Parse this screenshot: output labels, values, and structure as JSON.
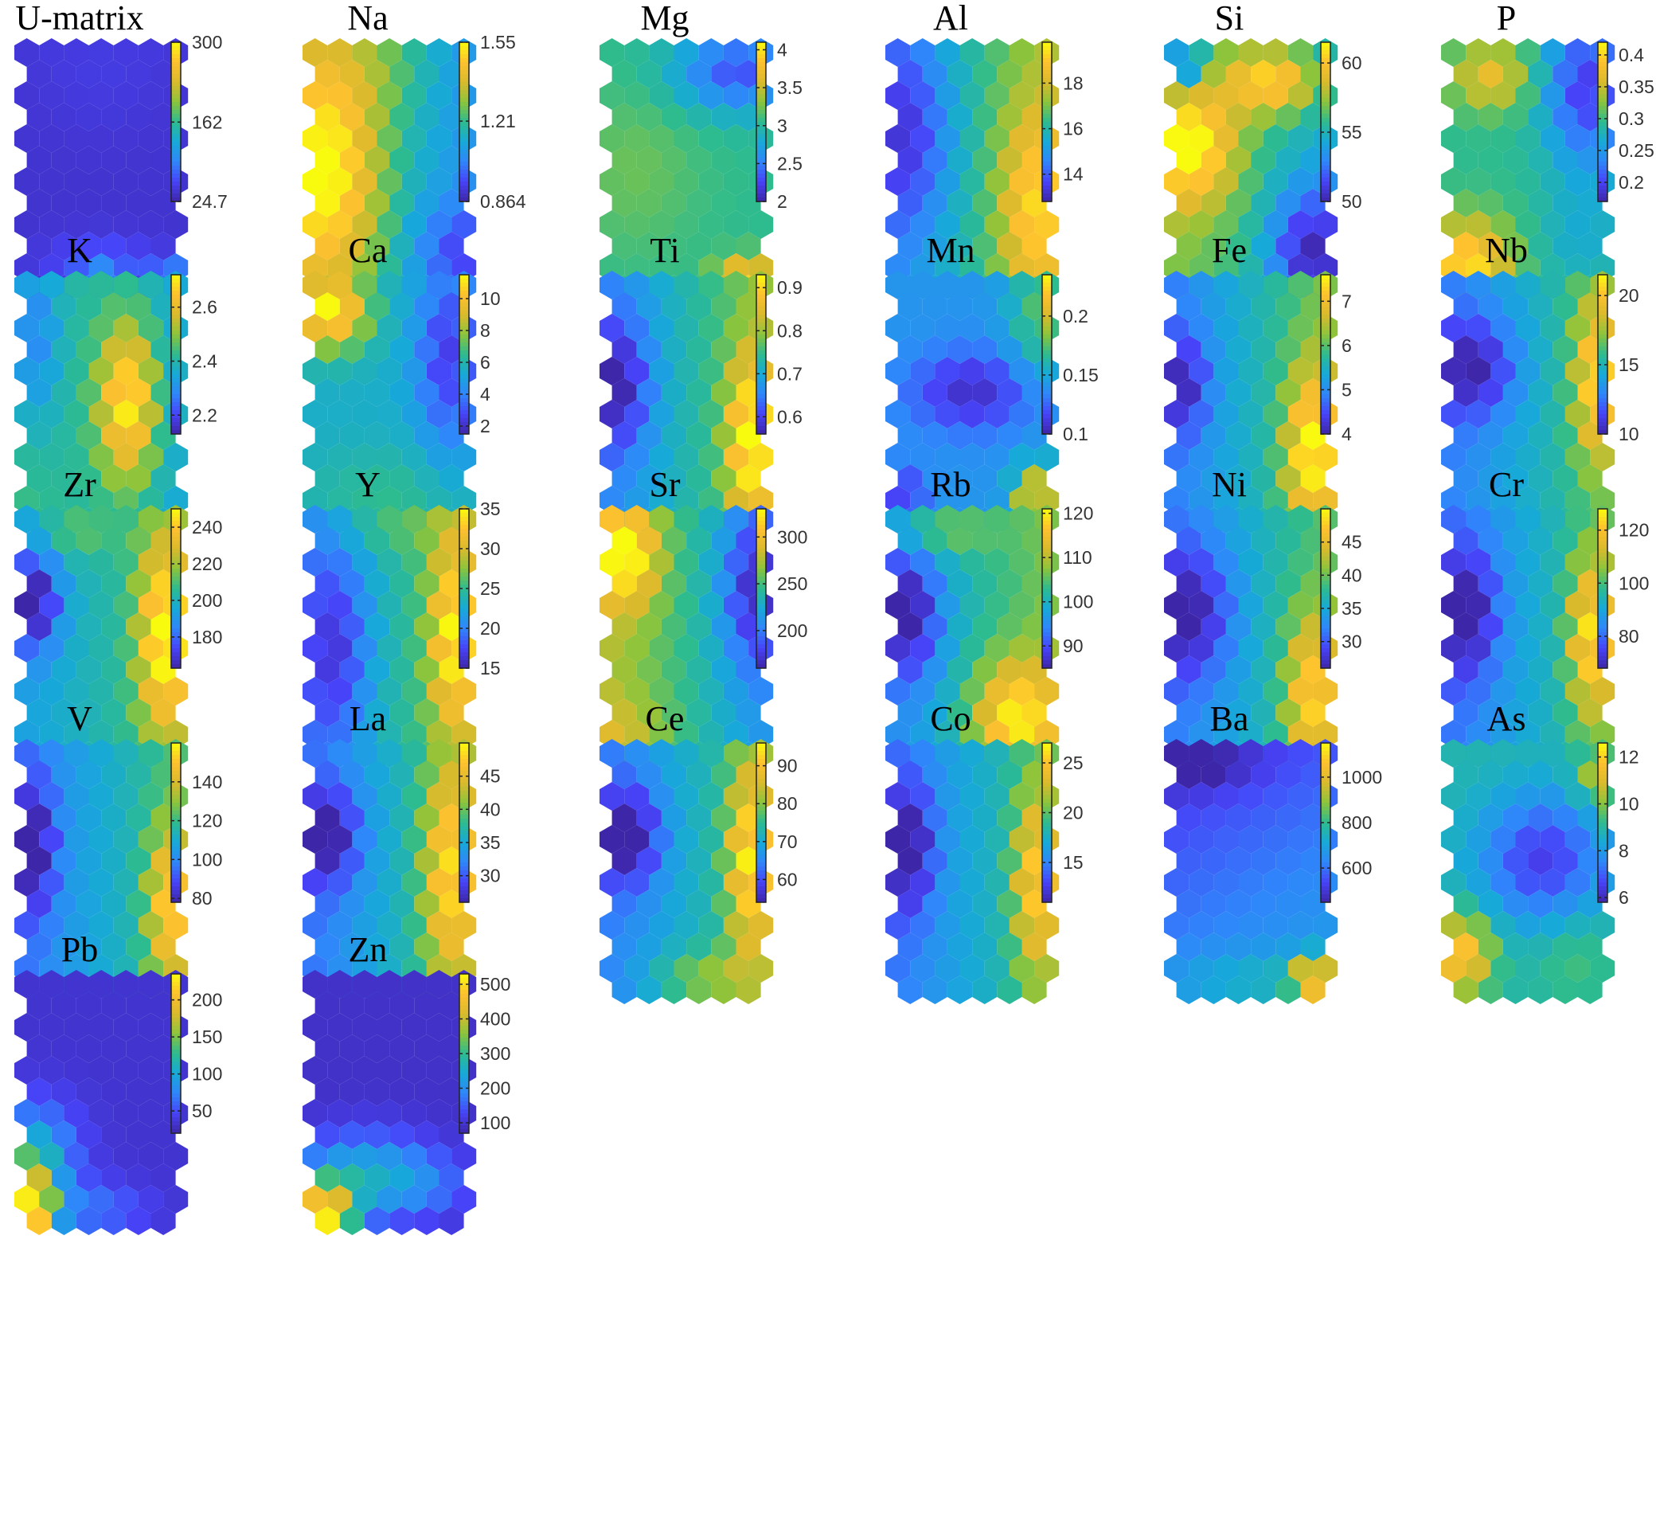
{
  "colormap": [
    "#3e26a8",
    "#4743f8",
    "#2f87fa",
    "#17a9d8",
    "#2dbb8f",
    "#8dc43b",
    "#dbba2d",
    "#fdc12f",
    "#f9fb0e"
  ],
  "chart_data": [
    {
      "type": "heatmap",
      "title": "U-matrix",
      "clim": [
        24.7,
        300
      ],
      "ticks": [
        24.7,
        162,
        300
      ],
      "tick_labels": [
        "24.7",
        "162",
        "300"
      ],
      "field": {
        "base": 0.06,
        "terms": [
          [
            0.22,
            0.5,
            0.98,
            0.09,
            0.05
          ],
          [
            0.25,
            0.95,
            0.95,
            0.08,
            0.05
          ],
          [
            0.12,
            0.5,
            0.9,
            0.25,
            0.08
          ],
          [
            0.03,
            0.5,
            0.05,
            0.4,
            0.2
          ]
        ]
      }
    },
    {
      "type": "heatmap",
      "title": "Na",
      "clim": [
        0.864,
        1.55
      ],
      "ticks": [
        0.864,
        1.21,
        1.55
      ],
      "tick_labels": [
        "0.864",
        "1.21",
        "1.55"
      ],
      "field": {
        "base": 0.45,
        "grad": [
          -0.28,
          0
        ],
        "terms": [
          [
            0.45,
            0.1,
            0.5,
            0.25,
            0.35
          ],
          [
            0.1,
            0.45,
            0.05,
            0.25,
            0.15
          ],
          [
            -0.2,
            0.95,
            0.85,
            0.22,
            0.15
          ]
        ]
      }
    },
    {
      "type": "heatmap",
      "title": "Mg",
      "clim": [
        2,
        4.1
      ],
      "ticks": [
        2,
        2.5,
        3,
        3.5,
        4
      ],
      "tick_labels": [
        "2",
        "2.5",
        "3",
        "3.5",
        "4"
      ],
      "field": {
        "base": 0.5,
        "terms": [
          [
            -0.35,
            0.85,
            0.08,
            0.3,
            0.12
          ],
          [
            0.45,
            0.9,
            0.97,
            0.14,
            0.07
          ],
          [
            0.08,
            0.15,
            0.5,
            0.3,
            0.25
          ]
        ]
      }
    },
    {
      "type": "heatmap",
      "title": "Al",
      "clim": [
        12.8,
        19.8
      ],
      "ticks": [
        14,
        16,
        18
      ],
      "tick_labels": [
        "14",
        "16",
        "18"
      ],
      "field": {
        "base": 0.48,
        "grad": [
          0.35,
          0
        ],
        "terms": [
          [
            0.3,
            0.9,
            0.65,
            0.16,
            0.3
          ],
          [
            -0.25,
            0.08,
            0.35,
            0.2,
            0.3
          ]
        ]
      }
    },
    {
      "type": "heatmap",
      "title": "Si",
      "clim": [
        50,
        61.5
      ],
      "ticks": [
        50,
        55,
        60
      ],
      "tick_labels": [
        "50",
        "55",
        "60"
      ],
      "field": {
        "base": 0.5,
        "grad": [
          -0.2,
          0
        ],
        "terms": [
          [
            0.45,
            0.1,
            0.4,
            0.22,
            0.18
          ],
          [
            0.45,
            0.65,
            0.12,
            0.22,
            0.1
          ],
          [
            -0.4,
            0.9,
            0.85,
            0.2,
            0.2
          ],
          [
            -0.4,
            0.05,
            0.05,
            0.1,
            0.08
          ]
        ]
      }
    },
    {
      "type": "heatmap",
      "title": "P",
      "clim": [
        0.17,
        0.42
      ],
      "ticks": [
        0.2,
        0.25,
        0.3,
        0.35,
        0.4
      ],
      "tick_labels": [
        "0.2",
        "0.25",
        "0.3",
        "0.35",
        "0.4"
      ],
      "field": {
        "base": 0.5,
        "terms": [
          [
            0.45,
            0.1,
            0.9,
            0.2,
            0.14
          ],
          [
            0.3,
            0.25,
            0.1,
            0.18,
            0.1
          ],
          [
            -0.4,
            0.9,
            0.15,
            0.2,
            0.25
          ],
          [
            -0.1,
            0.85,
            0.8,
            0.2,
            0.15
          ]
        ]
      }
    },
    {
      "type": "heatmap",
      "title": "K",
      "clim": [
        2.13,
        2.72
      ],
      "ticks": [
        2.2,
        2.4,
        2.6
      ],
      "tick_labels": [
        "2.2",
        "2.4",
        "2.6"
      ],
      "field": {
        "base": 0.45,
        "grad": [
          -0.15,
          0
        ],
        "terms": [
          [
            0.55,
            0.68,
            0.5,
            0.14,
            0.25
          ],
          [
            -0.25,
            0.05,
            0.2,
            0.12,
            0.3
          ]
        ]
      }
    },
    {
      "type": "heatmap",
      "title": "Ca",
      "clim": [
        1.5,
        11.5
      ],
      "ticks": [
        2,
        4,
        6,
        8,
        10
      ],
      "tick_labels": [
        "2",
        "4",
        "6",
        "8",
        "10"
      ],
      "field": {
        "base": 0.4,
        "terms": [
          [
            0.6,
            0.1,
            0.1,
            0.18,
            0.12
          ],
          [
            -0.3,
            0.9,
            0.3,
            0.15,
            0.3
          ],
          [
            0.1,
            0.5,
            0.9,
            0.4,
            0.15
          ]
        ]
      }
    },
    {
      "type": "heatmap",
      "title": "Ti",
      "clim": [
        0.56,
        0.93
      ],
      "ticks": [
        0.6,
        0.7,
        0.8,
        0.9
      ],
      "tick_labels": [
        "0.6",
        "0.7",
        "0.8",
        "0.9"
      ],
      "field": {
        "base": 0.45,
        "grad": [
          0.35,
          0
        ],
        "terms": [
          [
            0.45,
            0.92,
            0.65,
            0.1,
            0.25
          ],
          [
            -0.3,
            0.05,
            0.42,
            0.15,
            0.2
          ]
        ]
      }
    },
    {
      "type": "heatmap",
      "title": "Mn",
      "clim": [
        0.1,
        0.235
      ],
      "ticks": [
        0.1,
        0.15,
        0.2
      ],
      "tick_labels": [
        "0.1",
        "0.15",
        "0.2"
      ],
      "field": {
        "base": 0.3,
        "terms": [
          [
            -0.25,
            0.5,
            0.45,
            0.3,
            0.12
          ],
          [
            0.25,
            0.95,
            0.12,
            0.15,
            0.2
          ],
          [
            0.55,
            0.92,
            0.9,
            0.1,
            0.1
          ],
          [
            -0.2,
            0.05,
            0.9,
            0.1,
            0.1
          ]
        ]
      }
    },
    {
      "type": "heatmap",
      "title": "Fe",
      "clim": [
        4,
        7.6
      ],
      "ticks": [
        4,
        5,
        6,
        7
      ],
      "tick_labels": [
        "4",
        "5",
        "6",
        "7"
      ],
      "field": {
        "base": 0.42,
        "grad": [
          0.35,
          0
        ],
        "terms": [
          [
            0.45,
            0.9,
            0.7,
            0.12,
            0.25
          ],
          [
            -0.25,
            0.05,
            0.42,
            0.12,
            0.15
          ]
        ]
      }
    },
    {
      "type": "heatmap",
      "title": "Nb",
      "clim": [
        10,
        21.5
      ],
      "ticks": [
        10,
        15,
        20
      ],
      "tick_labels": [
        "10",
        "15",
        "20"
      ],
      "field": {
        "base": 0.4,
        "grad": [
          0.3,
          0
        ],
        "terms": [
          [
            0.4,
            0.95,
            0.4,
            0.1,
            0.25
          ],
          [
            -0.3,
            0.15,
            0.35,
            0.2,
            0.15
          ]
        ]
      }
    },
    {
      "type": "heatmap",
      "title": "Zr",
      "clim": [
        163,
        250
      ],
      "ticks": [
        180,
        200,
        220,
        240
      ],
      "tick_labels": [
        "180",
        "200",
        "220",
        "240"
      ],
      "field": {
        "base": 0.45,
        "grad": [
          0.2,
          0
        ],
        "terms": [
          [
            0.5,
            0.92,
            0.5,
            0.12,
            0.3
          ],
          [
            -0.4,
            0.05,
            0.35,
            0.12,
            0.15
          ],
          [
            0.15,
            0.3,
            0.05,
            0.2,
            0.08
          ]
        ]
      }
    },
    {
      "type": "heatmap",
      "title": "Y",
      "clim": [
        15,
        35
      ],
      "ticks": [
        15,
        20,
        25,
        30,
        35
      ],
      "tick_labels": [
        "15",
        "20",
        "25",
        "30",
        "35"
      ],
      "field": {
        "base": 0.45,
        "grad": [
          0.35,
          0
        ],
        "terms": [
          [
            0.4,
            0.92,
            0.5,
            0.1,
            0.3
          ],
          [
            -0.25,
            0.15,
            0.55,
            0.15,
            0.3
          ],
          [
            0.1,
            0.4,
            0.03,
            0.3,
            0.08
          ]
        ]
      }
    },
    {
      "type": "heatmap",
      "title": "Sr",
      "clim": [
        160,
        330
      ],
      "ticks": [
        200,
        250,
        300
      ],
      "tick_labels": [
        "200",
        "250",
        "300"
      ],
      "field": {
        "base": 0.5,
        "grad": [
          -0.35,
          0
        ],
        "terms": [
          [
            0.4,
            0.1,
            0.15,
            0.15,
            0.15
          ],
          [
            -0.3,
            0.95,
            0.3,
            0.15,
            0.25
          ],
          [
            0.1,
            0.1,
            0.9,
            0.2,
            0.1
          ]
        ]
      }
    },
    {
      "type": "heatmap",
      "title": "Rb",
      "clim": [
        85,
        121
      ],
      "ticks": [
        90,
        100,
        110,
        120
      ],
      "tick_labels": [
        "90",
        "100",
        "110",
        "120"
      ],
      "field": {
        "base": 0.45,
        "grad": [
          0.3,
          0
        ],
        "terms": [
          [
            0.45,
            0.78,
            0.85,
            0.2,
            0.18
          ],
          [
            -0.35,
            0.08,
            0.4,
            0.15,
            0.2
          ],
          [
            0.2,
            0.25,
            0.05,
            0.25,
            0.08
          ]
        ]
      }
    },
    {
      "type": "heatmap",
      "title": "Ni",
      "clim": [
        26,
        50
      ],
      "ticks": [
        30,
        35,
        40,
        45
      ],
      "tick_labels": [
        "30",
        "35",
        "40",
        "45"
      ],
      "field": {
        "base": 0.4,
        "grad": [
          0.3,
          0
        ],
        "terms": [
          [
            0.4,
            0.9,
            0.75,
            0.12,
            0.25
          ],
          [
            -0.3,
            0.1,
            0.4,
            0.2,
            0.2
          ]
        ]
      }
    },
    {
      "type": "heatmap",
      "title": "Cr",
      "clim": [
        68,
        128
      ],
      "ticks": [
        80,
        100,
        120
      ],
      "tick_labels": [
        "80",
        "100",
        "120"
      ],
      "field": {
        "base": 0.38,
        "grad": [
          0.3,
          0
        ],
        "terms": [
          [
            0.45,
            0.92,
            0.5,
            0.1,
            0.25
          ],
          [
            -0.3,
            0.1,
            0.4,
            0.15,
            0.2
          ]
        ]
      }
    },
    {
      "type": "heatmap",
      "title": "V",
      "clim": [
        78,
        160
      ],
      "ticks": [
        80,
        100,
        120,
        140
      ],
      "tick_labels": [
        "80",
        "100",
        "120",
        "140"
      ],
      "field": {
        "base": 0.38,
        "grad": [
          0.3,
          0
        ],
        "terms": [
          [
            0.4,
            0.95,
            0.65,
            0.1,
            0.25
          ],
          [
            -0.3,
            0.05,
            0.4,
            0.1,
            0.2
          ]
        ]
      }
    },
    {
      "type": "heatmap",
      "title": "La",
      "clim": [
        26,
        50
      ],
      "ticks": [
        30,
        35,
        40,
        45
      ],
      "tick_labels": [
        "30",
        "35",
        "40",
        "45"
      ],
      "field": {
        "base": 0.4,
        "grad": [
          0.35,
          0
        ],
        "terms": [
          [
            0.4,
            0.9,
            0.5,
            0.12,
            0.35
          ],
          [
            -0.3,
            0.1,
            0.35,
            0.15,
            0.15
          ]
        ]
      }
    },
    {
      "type": "heatmap",
      "title": "Ce",
      "clim": [
        54,
        96
      ],
      "ticks": [
        60,
        70,
        80,
        90
      ],
      "tick_labels": [
        "60",
        "70",
        "80",
        "90"
      ],
      "field": {
        "base": 0.4,
        "grad": [
          0.3,
          0
        ],
        "terms": [
          [
            0.45,
            0.92,
            0.45,
            0.1,
            0.3
          ],
          [
            -0.35,
            0.12,
            0.35,
            0.15,
            0.15
          ],
          [
            0.2,
            0.6,
            0.95,
            0.25,
            0.08
          ]
        ]
      }
    },
    {
      "type": "heatmap",
      "title": "Co",
      "clim": [
        11,
        27
      ],
      "ticks": [
        15,
        20,
        25
      ],
      "tick_labels": [
        "15",
        "20",
        "25"
      ],
      "field": {
        "base": 0.38,
        "grad": [
          0.3,
          0
        ],
        "terms": [
          [
            0.4,
            0.92,
            0.55,
            0.1,
            0.3
          ],
          [
            -0.3,
            0.08,
            0.4,
            0.12,
            0.2
          ]
        ]
      }
    },
    {
      "type": "heatmap",
      "title": "Ba",
      "clim": [
        450,
        1150
      ],
      "ticks": [
        600,
        800,
        1000
      ],
      "tick_labels": [
        "600",
        "800",
        "1000"
      ],
      "field": {
        "base": 0.22,
        "grad": [
          0.08,
          0.2
        ],
        "terms": [
          [
            0.6,
            0.92,
            0.95,
            0.1,
            0.06
          ],
          [
            -0.15,
            0.1,
            0.05,
            0.3,
            0.08
          ],
          [
            0.1,
            0.5,
            0.95,
            0.4,
            0.08
          ]
        ]
      }
    },
    {
      "type": "heatmap",
      "title": "As",
      "clim": [
        5.8,
        12.6
      ],
      "ticks": [
        6,
        8,
        10,
        12
      ],
      "tick_labels": [
        "6",
        "8",
        "10",
        "12"
      ],
      "field": {
        "base": 0.45,
        "terms": [
          [
            -0.35,
            0.6,
            0.45,
            0.3,
            0.2
          ],
          [
            0.45,
            0.05,
            0.85,
            0.15,
            0.12
          ],
          [
            0.25,
            0.95,
            0.1,
            0.1,
            0.08
          ],
          [
            0.1,
            0.8,
            0.85,
            0.2,
            0.15
          ]
        ]
      }
    },
    {
      "type": "heatmap",
      "title": "Pb",
      "clim": [
        20,
        235
      ],
      "ticks": [
        50,
        100,
        150,
        200
      ],
      "tick_labels": [
        "50",
        "100",
        "150",
        "200"
      ],
      "field": {
        "base": 0.06,
        "terms": [
          [
            0.85,
            0.02,
            0.98,
            0.12,
            0.15
          ],
          [
            0.3,
            0.05,
            0.72,
            0.2,
            0.15
          ],
          [
            0.15,
            0.45,
            0.95,
            0.25,
            0.08
          ]
        ]
      }
    },
    {
      "type": "heatmap",
      "title": "Zn",
      "clim": [
        70,
        530
      ],
      "ticks": [
        100,
        200,
        300,
        400,
        500
      ],
      "tick_labels": [
        "100",
        "200",
        "300",
        "400",
        "500"
      ],
      "field": {
        "base": 0.05,
        "terms": [
          [
            0.9,
            0.05,
            0.98,
            0.15,
            0.1
          ],
          [
            0.3,
            0.3,
            0.8,
            0.3,
            0.12
          ],
          [
            0.15,
            0.7,
            0.85,
            0.25,
            0.1
          ]
        ]
      }
    }
  ]
}
